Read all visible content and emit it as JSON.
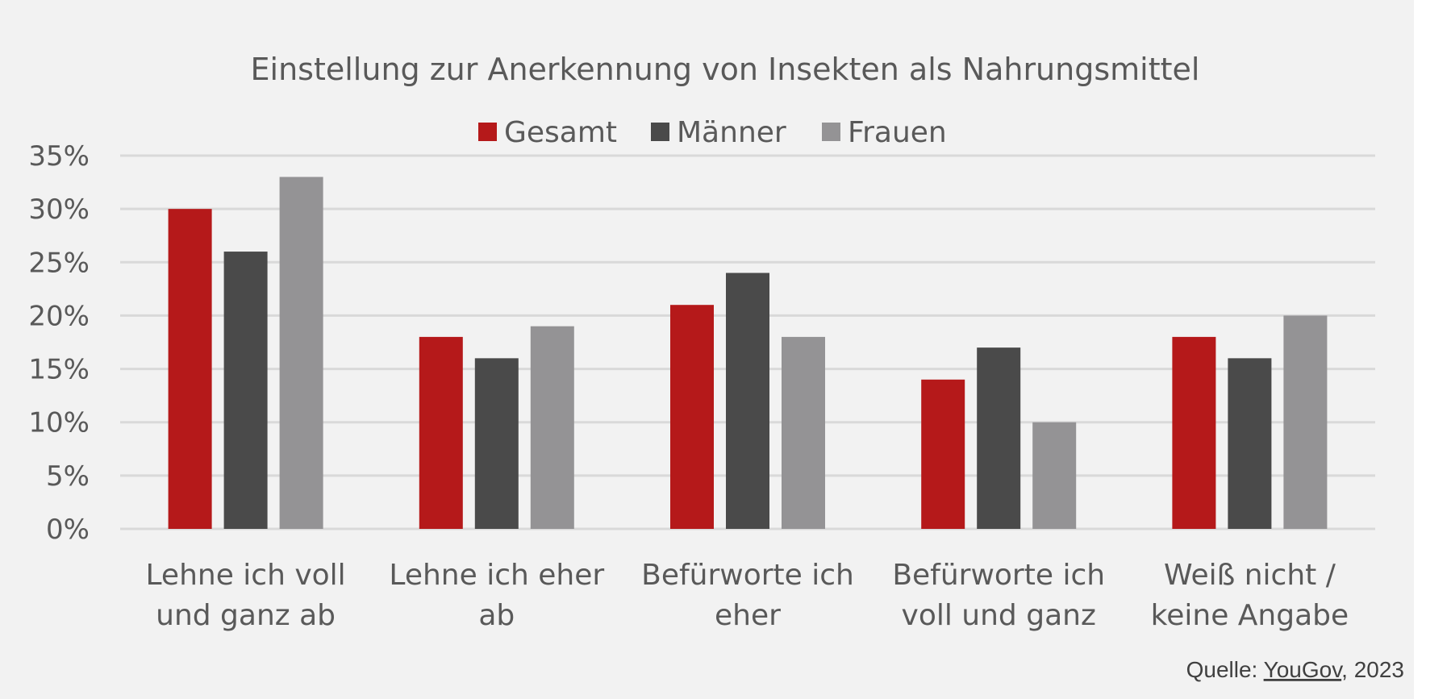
{
  "chart_data": {
    "type": "bar",
    "title": "Einstellung zur Anerkennung  von Insekten als Nahrungsmittel",
    "categories": [
      [
        "Lehne ich voll",
        "und ganz ab"
      ],
      [
        "Lehne ich eher",
        "ab"
      ],
      [
        "Befürworte ich",
        "eher"
      ],
      [
        "Befürworte ich",
        "voll und ganz"
      ],
      [
        "Weiß nicht /",
        "keine Angabe"
      ]
    ],
    "series": [
      {
        "name": "Gesamt",
        "color": "#b5191a",
        "values": [
          30,
          18,
          21,
          14,
          18
        ]
      },
      {
        "name": "Männer",
        "color": "#4a4a4a",
        "values": [
          26,
          16,
          24,
          17,
          16
        ]
      },
      {
        "name": "Frauen",
        "color": "#949395",
        "values": [
          33,
          19,
          18,
          10,
          20
        ]
      }
    ],
    "yticks": [
      "0%",
      "5%",
      "10%",
      "15%",
      "20%",
      "25%",
      "30%",
      "35%"
    ],
    "ylim": [
      0,
      35
    ],
    "ytick_step": 5,
    "xlabel": "",
    "ylabel": "",
    "grid": true,
    "legend_position": "top-center"
  },
  "source": {
    "prefix": "Quelle: ",
    "link": "YouGov",
    "suffix": ", 2023"
  }
}
